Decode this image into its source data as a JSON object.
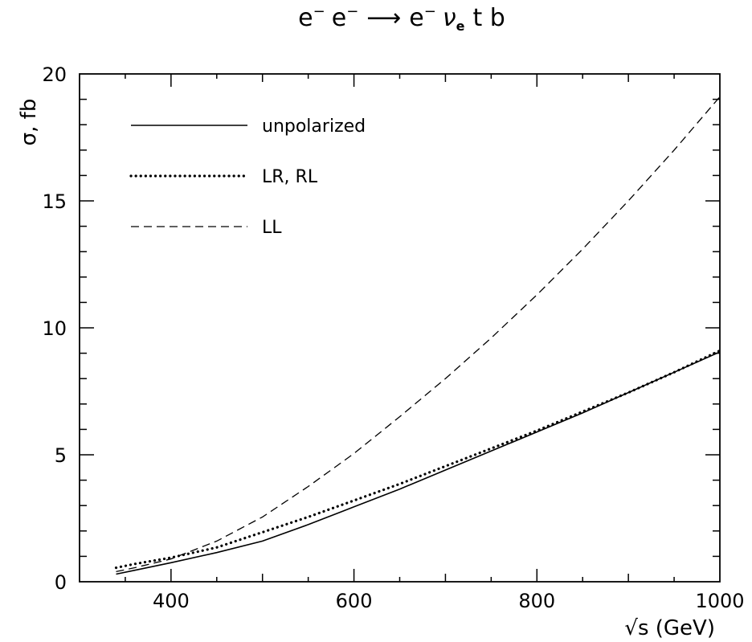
{
  "chart_data": {
    "type": "line",
    "title": {
      "e1": "e",
      "sup1": "−",
      "e2": "e",
      "sup2": "−",
      "arrow": "⟶",
      "e3": "e",
      "sup3": "−",
      "nu": "ν",
      "nu_sub": "e",
      "rest": "t b"
    },
    "xlabel": "√s (GeV)",
    "ylabel": "σ, fb",
    "xlim": [
      300,
      1000
    ],
    "ylim": [
      0,
      20
    ],
    "xticks": [
      400,
      600,
      800,
      1000
    ],
    "xticks_labels": [
      "400",
      "600",
      "800",
      "1000"
    ],
    "yticks": [
      0,
      5,
      10,
      15,
      20
    ],
    "yticks_labels": [
      "0",
      "5",
      "10",
      "15",
      "20"
    ],
    "grid": false,
    "legend_position": "top-left",
    "series": [
      {
        "name": "unpolarized",
        "style": "solid",
        "x": [
          340,
          360,
          400,
          450,
          500,
          550,
          600,
          650,
          700,
          750,
          800,
          850,
          900,
          950,
          1000
        ],
        "y": [
          0.3,
          0.45,
          0.75,
          1.15,
          1.6,
          2.25,
          2.95,
          3.65,
          4.4,
          5.15,
          5.9,
          6.65,
          7.45,
          8.25,
          9.05
        ]
      },
      {
        "name": "LR, RL",
        "style": "dotted",
        "x": [
          340,
          360,
          400,
          450,
          500,
          550,
          600,
          650,
          700,
          750,
          800,
          850,
          900,
          950,
          1000
        ],
        "y": [
          0.55,
          0.7,
          0.95,
          1.35,
          1.95,
          2.55,
          3.2,
          3.85,
          4.55,
          5.25,
          5.95,
          6.7,
          7.45,
          8.25,
          9.1
        ]
      },
      {
        "name": "LL",
        "style": "dashed",
        "x": [
          340,
          360,
          400,
          450,
          500,
          550,
          600,
          650,
          700,
          750,
          800,
          850,
          900,
          950,
          1000
        ],
        "y": [
          0.4,
          0.55,
          0.9,
          1.6,
          2.55,
          3.75,
          5.05,
          6.5,
          8.0,
          9.6,
          11.3,
          13.1,
          15.0,
          17.0,
          19.1
        ]
      }
    ]
  }
}
